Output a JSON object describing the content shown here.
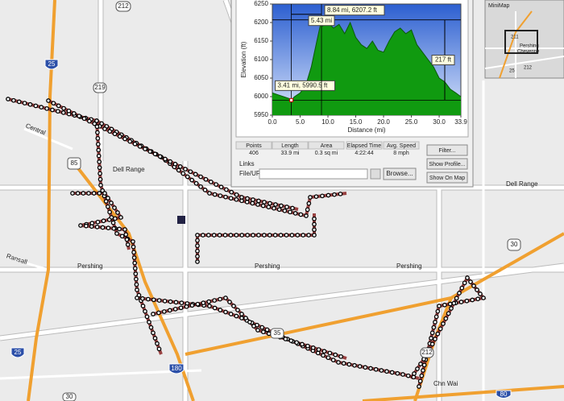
{
  "chart_data": {
    "type": "area",
    "y_label": "Elevation (ft)",
    "x_label": "Distance (mi)",
    "x": [
      0,
      1,
      2,
      3,
      3.41,
      4,
      5,
      6,
      7,
      8,
      8.84,
      9,
      10,
      11,
      12,
      13,
      14,
      15,
      16,
      17,
      18,
      19,
      20,
      21,
      22,
      23,
      24,
      25,
      26,
      27,
      28,
      29,
      30,
      31,
      32,
      33,
      33.9
    ],
    "values": [
      6010,
      6005,
      6000,
      5995,
      5990.5,
      6000,
      6010,
      6030,
      6080,
      6150,
      6207.2,
      6190,
      6200,
      6185,
      6195,
      6170,
      6200,
      6160,
      6140,
      6130,
      6150,
      6125,
      6120,
      6150,
      6175,
      6185,
      6170,
      6180,
      6140,
      6120,
      6100,
      6080,
      6050,
      6040,
      6020,
      6010,
      6000
    ],
    "color": "#109a10",
    "xlim": [
      0,
      33.9
    ],
    "ylim": [
      5950,
      6250
    ],
    "xticks": [
      {
        "value": 0,
        "label": "0.0"
      },
      {
        "value": 5,
        "label": "5.0"
      },
      {
        "value": 10,
        "label": "10.0"
      },
      {
        "value": 15,
        "label": "15.0"
      },
      {
        "value": 20,
        "label": "20.0"
      },
      {
        "value": 25,
        "label": "25.0"
      },
      {
        "value": 30,
        "label": "30.0"
      },
      33.9
    ],
    "yticks": [
      5950,
      6000,
      6050,
      6100,
      6150,
      6200,
      6250
    ],
    "markers": [
      {
        "x": 3.41,
        "y": 5990.5,
        "label": "3.41 mi, 5990.5 ft"
      },
      {
        "x": 8.84,
        "y": 6207.2,
        "label": "8.84 mi, 6207.2 ft"
      }
    ],
    "span_labels": [
      "5.43 mi",
      "217 ft"
    ]
  },
  "stats": {
    "headers": [
      "Points",
      "Length",
      "Area",
      "Elapsed Time",
      "Avg. Speed"
    ],
    "values": [
      "406",
      "33.9 mi",
      "0.3 sq mi",
      "4:22:44",
      "8 mph"
    ]
  },
  "links": {
    "title": "Links",
    "field_label": "File/URL:",
    "browse": "Browse..."
  },
  "buttons": [
    "Filter...",
    "Show Profile...",
    "Show On Map"
  ],
  "minimap": {
    "title": "MiniMap",
    "labels": [
      "211",
      "Pershing",
      "Cheyenne",
      "212",
      "25"
    ]
  },
  "map": {
    "shields": [
      "212",
      "219",
      "25",
      "85",
      "30",
      "180",
      "212",
      "25",
      "30",
      "80",
      "35"
    ],
    "streets": [
      "Dell Range",
      "Dell Range",
      "Pershing",
      "Pershing",
      "Pershing",
      "Ransall",
      "Central",
      "Chn Wai"
    ]
  }
}
